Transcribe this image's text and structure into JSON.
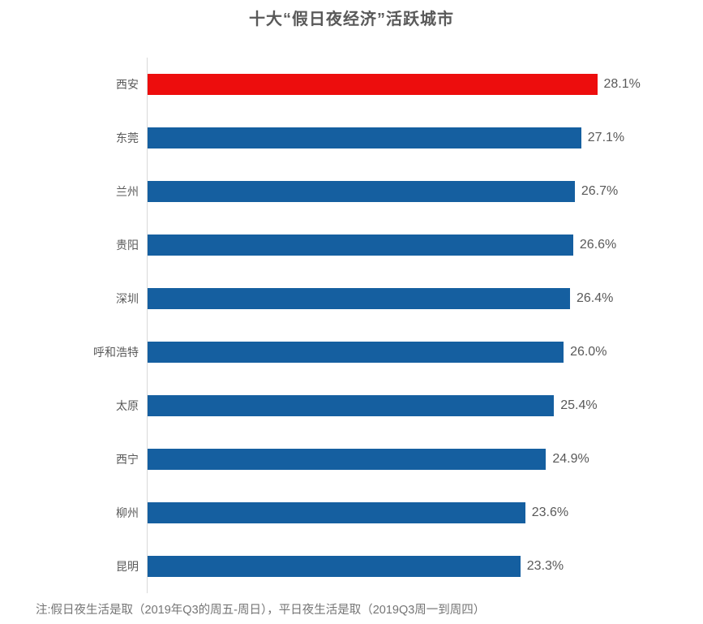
{
  "title": "十大“假日夜经济”活跃城市",
  "note": "注:假日夜生活是取（2019年Q3的周五-周日），平日夜生活是取（2019Q3周一到周四）",
  "colors": {
    "bar_default": "#155FA0",
    "bar_highlight": "#ED0D0D",
    "title_text": "#595959",
    "label_text": "#595959",
    "axis_line": "#D9D9D9",
    "note_text": "#757575"
  },
  "chart_data": {
    "type": "bar",
    "orientation": "horizontal",
    "title": "十大“假日夜经济”活跃城市",
    "categories": [
      "西安",
      "东莞",
      "兰州",
      "贵阳",
      "深圳",
      "呼和浩特",
      "太原",
      "西宁",
      "柳州",
      "昆明"
    ],
    "values": [
      28.1,
      27.1,
      26.7,
      26.6,
      26.4,
      26.0,
      25.4,
      24.9,
      23.6,
      23.3
    ],
    "value_labels": [
      "28.1%",
      "27.1%",
      "26.7%",
      "26.6%",
      "26.4%",
      "26.0%",
      "25.4%",
      "24.9%",
      "23.6%",
      "23.3%"
    ],
    "highlight_category": "西安",
    "xlim": [
      0,
      30
    ],
    "grid": false,
    "data_labels": true,
    "legend": false,
    "note": "注:假日夜生活是取（2019年Q3的周五-周日），平日夜生活是取（2019Q3周一到周四）"
  }
}
